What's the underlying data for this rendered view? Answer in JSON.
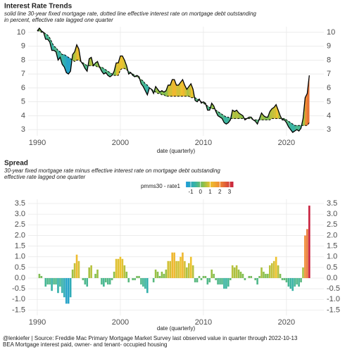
{
  "chart_data": [
    {
      "type": "line",
      "title": "Interest Rate Trends",
      "subtitle": [
        "solid line 30-year fixed mortgage rate, dotted line effective interest rate on mortgage debt outstanding",
        "in percent, effective rate lagged one quarter"
      ],
      "xlabel": "date (quarterly)",
      "fill_between": true,
      "x": [
        1990,
        1990.25,
        1990.5,
        1990.75,
        1991,
        1991.25,
        1991.5,
        1991.75,
        1992,
        1992.25,
        1992.5,
        1992.75,
        1993,
        1993.25,
        1993.5,
        1993.75,
        1994,
        1994.25,
        1994.5,
        1994.75,
        1995,
        1995.25,
        1995.5,
        1995.75,
        1996,
        1996.25,
        1996.5,
        1996.75,
        1997,
        1997.25,
        1997.5,
        1997.75,
        1998,
        1998.25,
        1998.5,
        1998.75,
        1999,
        1999.25,
        1999.5,
        1999.75,
        2000,
        2000.25,
        2000.5,
        2000.75,
        2001,
        2001.25,
        2001.5,
        2001.75,
        2002,
        2002.25,
        2002.5,
        2002.75,
        2003,
        2003.25,
        2003.5,
        2003.75,
        2004,
        2004.25,
        2004.5,
        2004.75,
        2005,
        2005.25,
        2005.5,
        2005.75,
        2006,
        2006.25,
        2006.5,
        2006.75,
        2007,
        2007.25,
        2007.5,
        2007.75,
        2008,
        2008.25,
        2008.5,
        2008.75,
        2009,
        2009.25,
        2009.5,
        2009.75,
        2010,
        2010.25,
        2010.5,
        2010.75,
        2011,
        2011.25,
        2011.5,
        2011.75,
        2012,
        2012.25,
        2012.5,
        2012.75,
        2013,
        2013.25,
        2013.5,
        2013.75,
        2014,
        2014.25,
        2014.5,
        2014.75,
        2015,
        2015.25,
        2015.5,
        2015.75,
        2016,
        2016.25,
        2016.5,
        2016.75,
        2017,
        2017.25,
        2017.5,
        2017.75,
        2018,
        2018.25,
        2018.5,
        2018.75,
        2019,
        2019.25,
        2019.5,
        2019.75,
        2020,
        2020.25,
        2020.5,
        2020.75,
        2021,
        2021.25,
        2021.5,
        2021.75,
        2022,
        2022.25,
        2022.5,
        2022.75
      ],
      "series": [
        {
          "color": "#000000",
          "values": [
            10.1,
            10.3,
            10.1,
            10.0,
            9.5,
            9.5,
            9.3,
            8.7,
            8.7,
            8.6,
            8.0,
            8.2,
            7.7,
            7.5,
            7.1,
            7.0,
            7.2,
            8.4,
            8.6,
            9.1,
            8.8,
            7.9,
            7.7,
            7.4,
            7.2,
            8.1,
            8.2,
            7.6,
            7.8,
            7.9,
            7.5,
            7.2,
            7.0,
            7.1,
            6.9,
            6.8,
            6.9,
            7.2,
            7.8,
            7.8,
            8.3,
            8.3,
            8.0,
            7.6,
            7.0,
            7.1,
            6.9,
            6.8,
            6.9,
            6.8,
            6.3,
            6.1,
            5.8,
            5.5,
            6.0,
            5.9,
            5.6,
            6.1,
            5.9,
            5.7,
            5.8,
            5.7,
            5.8,
            6.2,
            6.2,
            6.6,
            6.6,
            6.2,
            6.2,
            6.4,
            6.6,
            6.2,
            5.9,
            6.1,
            6.3,
            5.9,
            5.1,
            5.0,
            5.2,
            4.9,
            5.0,
            4.9,
            4.4,
            4.4,
            4.9,
            4.7,
            4.3,
            4.0,
            3.9,
            3.8,
            3.5,
            3.4,
            3.5,
            3.7,
            4.4,
            4.3,
            4.4,
            4.2,
            4.1,
            4.0,
            3.7,
            3.8,
            3.9,
            3.9,
            3.7,
            3.6,
            3.4,
            3.8,
            4.2,
            4.0,
            3.9,
            3.9,
            4.3,
            4.5,
            4.6,
            4.8,
            4.4,
            4.0,
            3.7,
            3.7,
            3.5,
            3.2,
            3.0,
            2.8,
            2.9,
            3.0,
            2.9,
            3.1,
            3.8,
            5.3,
            5.6,
            6.9
          ]
        },
        {
          "color": "#000000",
          "dashed": true,
          "values": [
            10.1,
            10.1,
            10.0,
            10.0,
            9.9,
            9.8,
            9.6,
            9.3,
            9.0,
            8.9,
            8.7,
            8.6,
            8.4,
            8.4,
            8.3,
            8.2,
            8.1,
            8.0,
            7.9,
            8.0,
            8.0,
            7.9,
            7.8,
            7.7,
            7.6,
            7.6,
            7.6,
            7.6,
            7.6,
            7.5,
            7.5,
            7.5,
            7.4,
            7.3,
            7.2,
            7.1,
            7.0,
            6.9,
            6.9,
            6.9,
            7.3,
            7.4,
            7.4,
            7.3,
            7.2,
            7.1,
            7.0,
            6.9,
            6.8,
            6.7,
            6.6,
            6.5,
            6.3,
            6.2,
            6.0,
            5.9,
            5.8,
            5.7,
            5.6,
            5.6,
            5.5,
            5.5,
            5.4,
            5.4,
            5.4,
            5.4,
            5.4,
            5.4,
            5.4,
            5.4,
            5.4,
            5.4,
            5.4,
            5.4,
            5.3,
            5.3,
            5.3,
            5.2,
            5.1,
            5.0,
            4.9,
            4.8,
            4.7,
            4.6,
            4.5,
            4.5,
            4.4,
            4.3,
            4.2,
            4.1,
            4.0,
            3.9,
            3.9,
            3.8,
            3.8,
            3.8,
            3.8,
            3.8,
            3.8,
            3.8,
            3.8,
            3.8,
            3.8,
            3.8,
            3.7,
            3.7,
            3.7,
            3.7,
            3.7,
            3.7,
            3.7,
            3.7,
            3.7,
            3.8,
            3.8,
            3.8,
            3.8,
            3.8,
            3.8,
            3.8,
            3.7,
            3.6,
            3.5,
            3.4,
            3.3,
            3.3,
            3.3,
            3.3,
            3.3,
            3.3,
            3.3,
            3.5
          ]
        }
      ],
      "xlim": [
        1988.9,
        2024.5
      ],
      "xticks": [
        1990,
        2000,
        2010,
        2020
      ],
      "ylim": [
        2.55,
        10.4
      ],
      "yticks": [
        3,
        4,
        5,
        6,
        7,
        8,
        9,
        10
      ],
      "grid": true
    },
    {
      "type": "bar",
      "title": "Spread",
      "subtitle": [
        "30-year fixed mortgage rate minus effective interest rate on mortgage debt outstanding",
        "effective rate lagged one quarter"
      ],
      "xlabel": "date (quarterly)",
      "legend_title": "pmms30 - rate1",
      "x": [
        1990,
        1990.25,
        1990.5,
        1990.75,
        1991,
        1991.25,
        1991.5,
        1991.75,
        1992,
        1992.25,
        1992.5,
        1992.75,
        1993,
        1993.25,
        1993.5,
        1993.75,
        1994,
        1994.25,
        1994.5,
        1994.75,
        1995,
        1995.25,
        1995.5,
        1995.75,
        1996,
        1996.25,
        1996.5,
        1996.75,
        1997,
        1997.25,
        1997.5,
        1997.75,
        1998,
        1998.25,
        1998.5,
        1998.75,
        1999,
        1999.25,
        1999.5,
        1999.75,
        2000,
        2000.25,
        2000.5,
        2000.75,
        2001,
        2001.25,
        2001.5,
        2001.75,
        2002,
        2002.25,
        2002.5,
        2002.75,
        2003,
        2003.25,
        2003.5,
        2003.75,
        2004,
        2004.25,
        2004.5,
        2004.75,
        2005,
        2005.25,
        2005.5,
        2005.75,
        2006,
        2006.25,
        2006.5,
        2006.75,
        2007,
        2007.25,
        2007.5,
        2007.75,
        2008,
        2008.25,
        2008.5,
        2008.75,
        2009,
        2009.25,
        2009.5,
        2009.75,
        2010,
        2010.25,
        2010.5,
        2010.75,
        2011,
        2011.25,
        2011.5,
        2011.75,
        2012,
        2012.25,
        2012.5,
        2012.75,
        2013,
        2013.25,
        2013.5,
        2013.75,
        2014,
        2014.25,
        2014.5,
        2014.75,
        2015,
        2015.25,
        2015.5,
        2015.75,
        2016,
        2016.25,
        2016.5,
        2016.75,
        2017,
        2017.25,
        2017.5,
        2017.75,
        2018,
        2018.25,
        2018.5,
        2018.75,
        2019,
        2019.25,
        2019.5,
        2019.75,
        2020,
        2020.25,
        2020.5,
        2020.75,
        2021,
        2021.25,
        2021.5,
        2021.75,
        2022,
        2022.25,
        2022.5,
        2022.75
      ],
      "values": [
        0.0,
        0.2,
        0.1,
        0.0,
        -0.4,
        -0.3,
        -0.3,
        -0.6,
        -0.3,
        -0.3,
        -0.7,
        -0.4,
        -0.7,
        -0.9,
        -1.2,
        -1.2,
        -0.9,
        0.4,
        0.7,
        1.1,
        0.8,
        0.0,
        -0.1,
        -0.3,
        -0.4,
        0.5,
        0.6,
        0.0,
        0.2,
        0.4,
        0.0,
        -0.3,
        -0.4,
        -0.2,
        -0.3,
        -0.3,
        -0.1,
        0.3,
        0.9,
        0.9,
        1.0,
        0.9,
        0.6,
        0.3,
        -0.2,
        0.0,
        -0.1,
        -0.1,
        0.1,
        0.1,
        -0.3,
        -0.4,
        -0.5,
        -0.7,
        0.0,
        0.0,
        -0.2,
        0.4,
        0.3,
        0.1,
        0.3,
        0.2,
        0.4,
        0.8,
        0.8,
        1.2,
        1.2,
        0.8,
        0.8,
        1.0,
        1.2,
        0.8,
        0.5,
        0.7,
        1.0,
        0.6,
        -0.2,
        -0.2,
        0.1,
        -0.1,
        0.1,
        0.1,
        -0.3,
        -0.2,
        0.4,
        0.2,
        -0.1,
        -0.3,
        -0.3,
        -0.3,
        -0.5,
        -0.5,
        -0.4,
        -0.1,
        0.6,
        0.5,
        0.6,
        0.4,
        0.3,
        0.2,
        -0.1,
        0.0,
        0.1,
        0.1,
        0.0,
        -0.1,
        -0.3,
        0.1,
        0.5,
        0.3,
        0.2,
        0.2,
        0.6,
        0.7,
        0.8,
        1.0,
        0.6,
        0.2,
        -0.1,
        -0.1,
        -0.2,
        -0.4,
        -0.5,
        -0.6,
        -0.4,
        -0.3,
        -0.4,
        -0.2,
        0.5,
        2.0,
        2.3,
        3.4
      ],
      "xlim": [
        1988.9,
        2024.5
      ],
      "xticks": [
        1990,
        2000,
        2010,
        2020
      ],
      "ylim": [
        -1.75,
        3.7
      ],
      "yticks": [
        -1.5,
        {
          "value": -1,
          "label": "-1.0"
        },
        -0.5,
        {
          "value": 0,
          "label": "0.0"
        },
        0.5,
        {
          "value": 1,
          "label": "1.0"
        },
        1.5,
        {
          "value": 2,
          "label": "2.0"
        },
        2.5,
        {
          "value": 3,
          "label": "3.0"
        },
        3.5
      ],
      "grid": true,
      "colorscale": {
        "domain": [
          -1.5,
          3.4
        ],
        "stops": [
          [
            -1.5,
            "#1d9bd9"
          ],
          [
            -0.5,
            "#3bb5a0"
          ],
          [
            0.3,
            "#8dc04a"
          ],
          [
            1,
            "#eec22f"
          ],
          [
            2,
            "#f08a34"
          ],
          [
            3.4,
            "#c8203e"
          ]
        ],
        "ticks": [
          -1,
          0,
          1,
          2,
          3
        ]
      }
    }
  ],
  "caption": [
    "@lenkiefer | Source: Freddie Mac Primary Mortgage Market Survey last observed value in quarter through 2022-10-13",
    "BEA Mortgage interest paid, owner- and tenant- occupied housing"
  ]
}
